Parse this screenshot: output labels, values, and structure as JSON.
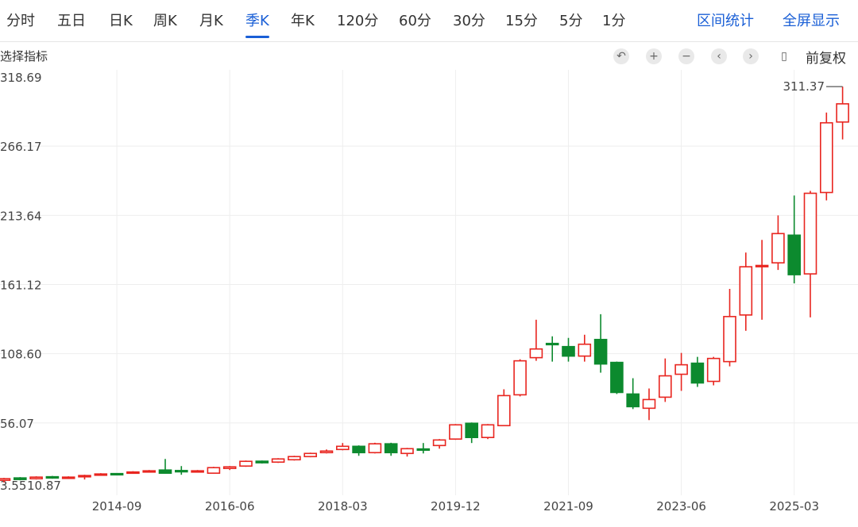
{
  "tabs": [
    "分时",
    "五日",
    "日K",
    "周K",
    "月K",
    "季K",
    "年K",
    "120分",
    "60分",
    "30分",
    "15分",
    "5分",
    "1分"
  ],
  "active_tab": "季K",
  "right_links": {
    "range_stats": "区间统计",
    "fullscreen": "全屏显示"
  },
  "indicator_select": "选择指标",
  "toolbar": {
    "icons": [
      "undo-icon",
      "zoom-in-icon",
      "zoom-out-icon",
      "scroll-left-icon",
      "scroll-right-icon",
      "candle-style-icon"
    ],
    "adjust": "前复权"
  },
  "colors": {
    "up": "#e8251f",
    "down": "#0c8a2e",
    "accent": "#1a5fd6"
  },
  "chart_data": {
    "type": "candlestick",
    "period": "quarterly",
    "y_ticks": [
      "318.69",
      "266.17",
      "213.64",
      "161.12",
      "108.60",
      "56.07",
      "3.55"
    ],
    "ylim": [
      3.55,
      318.69
    ],
    "x_ticks": [
      {
        "index": 7,
        "label": "2014-09"
      },
      {
        "index": 14,
        "label": "2016-06"
      },
      {
        "index": 21,
        "label": "2018-03"
      },
      {
        "index": 28,
        "label": "2019-12"
      },
      {
        "index": 35,
        "label": "2021-09"
      },
      {
        "index": 42,
        "label": "2023-06"
      },
      {
        "index": 49,
        "label": "2025-03"
      }
    ],
    "grid": true,
    "max_marker": "311.37",
    "min_marker": "10.87",
    "ohlc": [
      [
        12.5,
        13.7,
        14.3,
        10.87
      ],
      [
        14.3,
        13.1,
        14.9,
        12.5
      ],
      [
        13.7,
        14.9,
        15.5,
        13.1
      ],
      [
        15.2,
        14.3,
        15.8,
        13.7
      ],
      [
        14.0,
        14.9,
        15.5,
        13.7
      ],
      [
        15.2,
        16.1,
        16.7,
        13.1
      ],
      [
        16.4,
        17.3,
        17.9,
        16.1
      ],
      [
        17.6,
        16.7,
        17.9,
        16.4
      ],
      [
        17.9,
        18.8,
        19.4,
        17.6
      ],
      [
        18.8,
        19.7,
        20.3,
        18.5
      ],
      [
        20.3,
        17.9,
        28.7,
        17.6
      ],
      [
        19.9,
        19.4,
        23.3,
        16.7
      ],
      [
        18.8,
        19.7,
        20.3,
        18.5
      ],
      [
        17.9,
        22.1,
        22.7,
        17.6
      ],
      [
        21.5,
        22.7,
        23.3,
        20.3
      ],
      [
        23.3,
        26.9,
        27.5,
        22.7
      ],
      [
        27.0,
        25.8,
        27.5,
        25.2
      ],
      [
        26.3,
        28.7,
        29.3,
        25.7
      ],
      [
        28.1,
        30.5,
        31.1,
        27.5
      ],
      [
        30.5,
        32.9,
        33.5,
        30.0
      ],
      [
        33.5,
        34.7,
        35.9,
        32.9
      ],
      [
        35.9,
        38.3,
        40.8,
        35.3
      ],
      [
        38.3,
        33.5,
        39.0,
        31.1
      ],
      [
        33.5,
        40.2,
        41.0,
        32.9
      ],
      [
        40.2,
        33.5,
        41.0,
        31.1
      ],
      [
        32.9,
        36.5,
        37.1,
        30.5
      ],
      [
        36.3,
        35.7,
        40.8,
        32.9
      ],
      [
        38.9,
        43.1,
        43.8,
        36.5
      ],
      [
        43.8,
        54.6,
        55.2,
        43.2
      ],
      [
        55.8,
        45.0,
        56.4,
        40.8
      ],
      [
        45.0,
        54.6,
        55.2,
        43.8
      ],
      [
        54.0,
        76.8,
        81.6,
        54.0
      ],
      [
        77.4,
        103.2,
        104.4,
        76.2
      ],
      [
        105.6,
        112.2,
        134.4,
        103.2
      ],
      [
        116.4,
        115.8,
        121.8,
        102.6
      ],
      [
        114.0,
        106.8,
        120.6,
        102.6
      ],
      [
        106.8,
        115.8,
        123.0,
        102.6
      ],
      [
        119.4,
        100.8,
        138.6,
        94.2
      ],
      [
        102.0,
        79.2,
        102.6,
        78.0
      ],
      [
        78.0,
        68.4,
        90.0,
        66.6
      ],
      [
        67.2,
        73.8,
        82.2,
        58.2
      ],
      [
        75.6,
        91.8,
        105.0,
        72.0
      ],
      [
        93.0,
        100.2,
        109.2,
        80.4
      ],
      [
        101.4,
        86.4,
        106.2,
        83.4
      ],
      [
        87.6,
        105.0,
        106.2,
        84.6
      ],
      [
        102.6,
        136.8,
        157.8,
        99.0
      ],
      [
        138.0,
        174.6,
        185.4,
        126.0
      ],
      [
        174.8,
        175.6,
        195.0,
        134.4
      ],
      [
        177.6,
        199.8,
        213.6,
        172.2
      ],
      [
        198.6,
        168.6,
        228.7,
        162.0
      ],
      [
        169.2,
        230.4,
        232.2,
        136.2
      ],
      [
        231.0,
        283.9,
        291.7,
        225.0
      ],
      [
        284.5,
        298.3,
        311.37,
        271.3
      ]
    ]
  }
}
